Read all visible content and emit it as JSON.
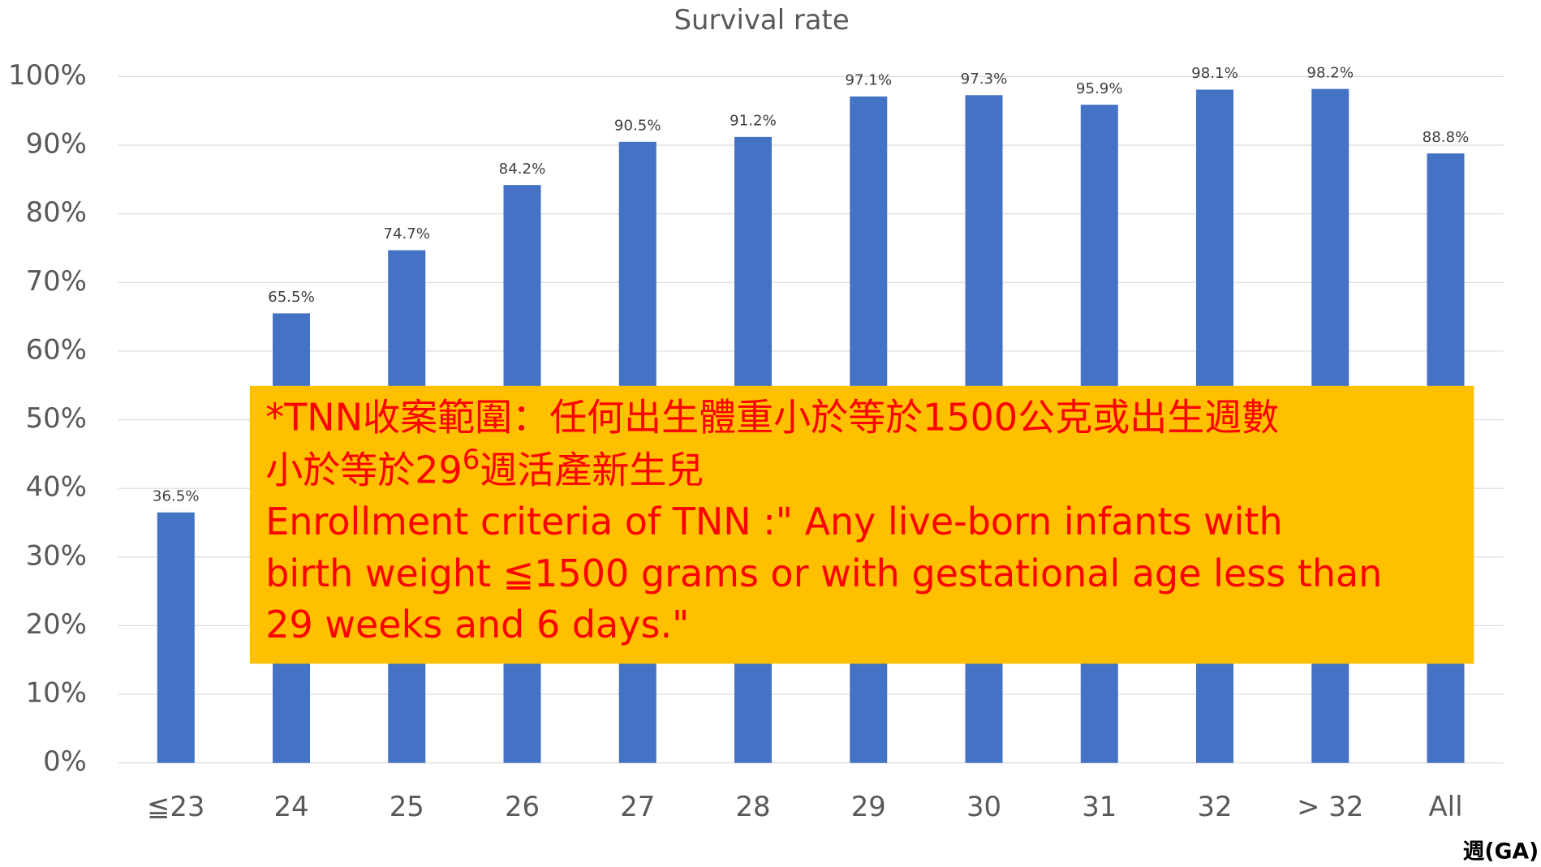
{
  "chart_data": {
    "type": "bar",
    "title": "Survival rate",
    "categories": [
      "≦23",
      "24",
      "25",
      "26",
      "27",
      "28",
      "29",
      "30",
      "31",
      "32",
      "> 32",
      "All"
    ],
    "values": [
      36.5,
      65.5,
      74.7,
      84.2,
      90.5,
      91.2,
      97.1,
      97.3,
      95.9,
      98.1,
      98.2,
      88.8
    ],
    "value_labels": [
      "36.5%",
      "65.5%",
      "74.7%",
      "84.2%",
      "90.5%",
      "91.2%",
      "97.1%",
      "97.3%",
      "95.9%",
      "98.1%",
      "98.2%",
      "88.8%"
    ],
    "color": "#4472c4",
    "ylim": [
      0,
      100
    ],
    "yticks": [
      {
        "value": 0,
        "label": "0%"
      },
      {
        "value": 10,
        "label": "10%"
      },
      {
        "value": 20,
        "label": "20%"
      },
      {
        "value": 30,
        "label": "30%"
      },
      {
        "value": 40,
        "label": "40%"
      },
      {
        "value": 50,
        "label": "50%"
      },
      {
        "value": 60,
        "label": "60%"
      },
      {
        "value": 70,
        "label": "70%"
      },
      {
        "value": 80,
        "label": "80%"
      },
      {
        "value": 90,
        "label": "90%"
      },
      {
        "value": 100,
        "label": "100%"
      }
    ],
    "grid": true,
    "xlabel": "週(GA)",
    "annotation": [
      "*TNN收案範圍：任何出生體重小於等於1500公克或出生週數",
      [
        "小於等於29",
        "6",
        "週活產新生兒"
      ],
      "Enrollment criteria of TNN :\" Any live-born infants with",
      "birth weight ≦1500 grams or with gestational age less than",
      "29 weeks and 6 days.\""
    ]
  }
}
